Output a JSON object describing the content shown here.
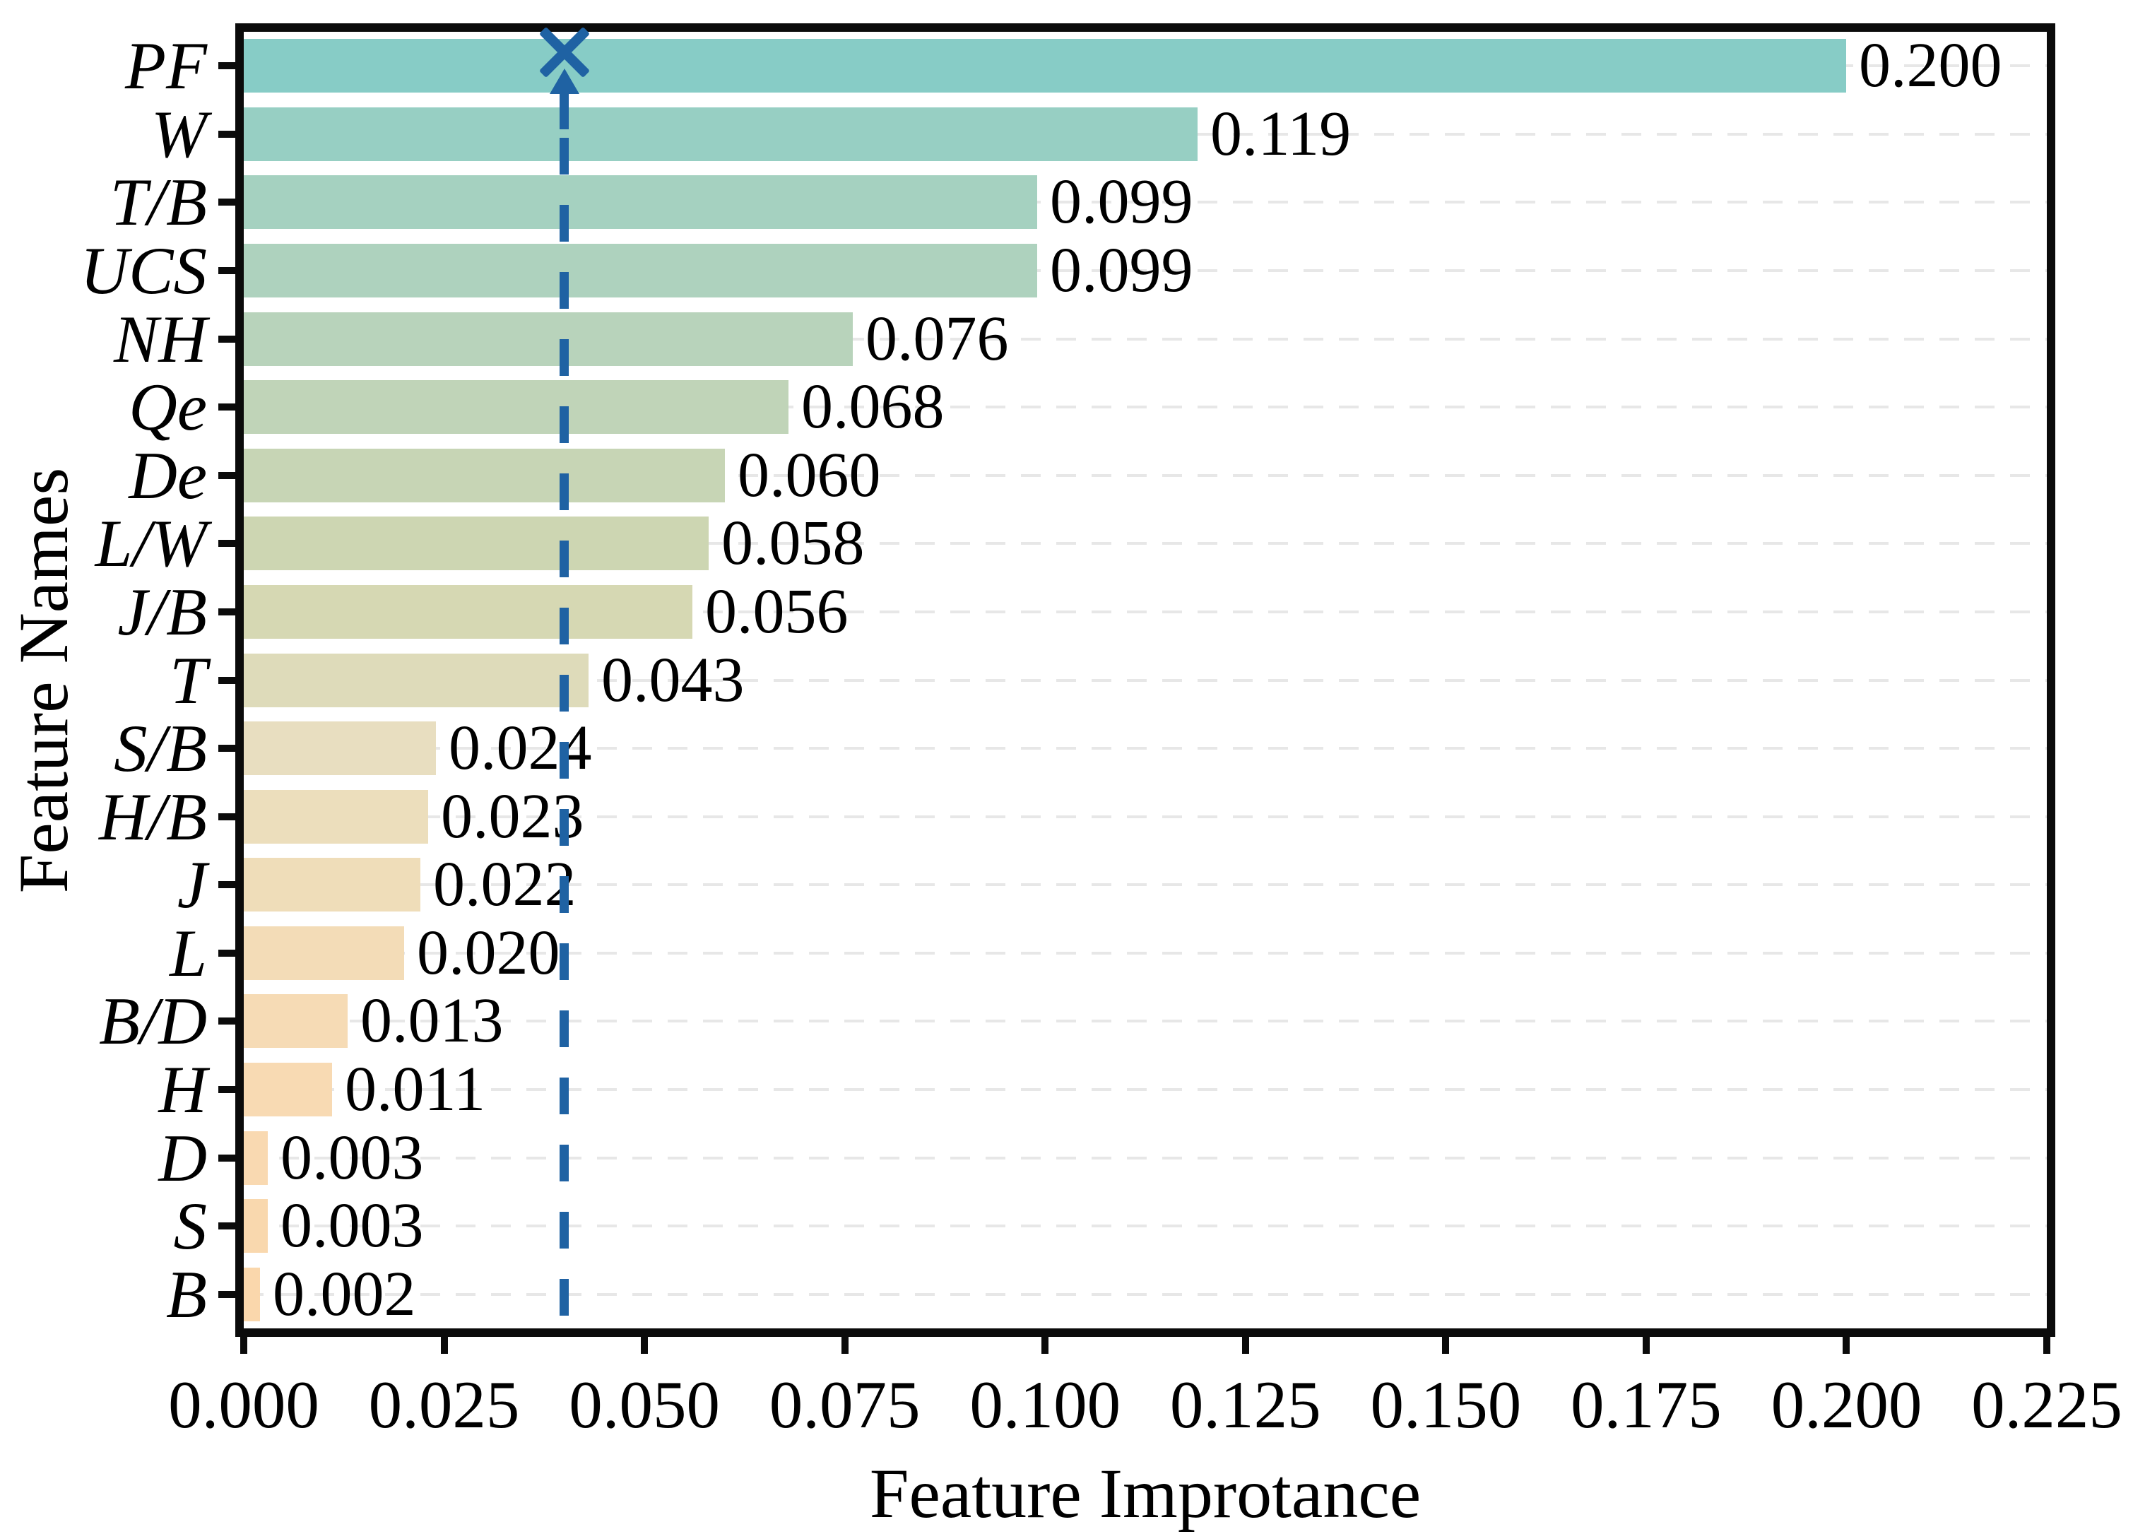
{
  "chart_data": {
    "type": "bar",
    "orientation": "horizontal",
    "xlabel": "Feature Improtance",
    "ylabel": "Feature Names",
    "categories": [
      "PF",
      "W",
      "T/B",
      "UCS",
      "NH",
      "Qe",
      "De",
      "L/W",
      "J/B",
      "T",
      "S/B",
      "H/B",
      "J",
      "L",
      "B/D",
      "H",
      "D",
      "S",
      "B"
    ],
    "values": [
      0.2,
      0.119,
      0.099,
      0.099,
      0.076,
      0.068,
      0.06,
      0.058,
      0.056,
      0.043,
      0.024,
      0.023,
      0.022,
      0.02,
      0.013,
      0.011,
      0.003,
      0.003,
      0.002
    ],
    "value_labels": [
      "0.200",
      "0.119",
      "0.099",
      "0.099",
      "0.076",
      "0.068",
      "0.060",
      "0.058",
      "0.056",
      "0.043",
      "0.024",
      "0.023",
      "0.022",
      "0.020",
      "0.013",
      "0.011",
      "0.003",
      "0.003",
      "0.002"
    ],
    "bar_colors": [
      "#87ccc6",
      "#97cfc3",
      "#a5d1c0",
      "#aed2be",
      "#b8d3bb",
      "#c0d4b8",
      "#c7d5b5",
      "#cdd6b2",
      "#d6d8b3",
      "#dedbba",
      "#e8dec0",
      "#ecdebc",
      "#efddb9",
      "#f3dcb7",
      "#f6dbb5",
      "#f8dab3",
      "#f9d9b1",
      "#f9d8ae",
      "#fad7ac"
    ],
    "xlim": [
      0,
      0.225
    ],
    "x_tick_step": 0.025,
    "x_ticks": [
      "0.000",
      "0.025",
      "0.050",
      "0.075",
      "0.100",
      "0.125",
      "0.150",
      "0.175",
      "0.200",
      "0.225"
    ],
    "threshold_line": {
      "x": 0.04,
      "style": "dashed",
      "marker": "x-with-up-arrow"
    },
    "grid": "horizontal-dashed",
    "legend": "none"
  },
  "colors": {
    "background": "#ffffff",
    "axis": "#0b0b0b",
    "grid": "#e7e7e7",
    "threshold_blue": "#1f62a3",
    "label_text": "#000000"
  }
}
